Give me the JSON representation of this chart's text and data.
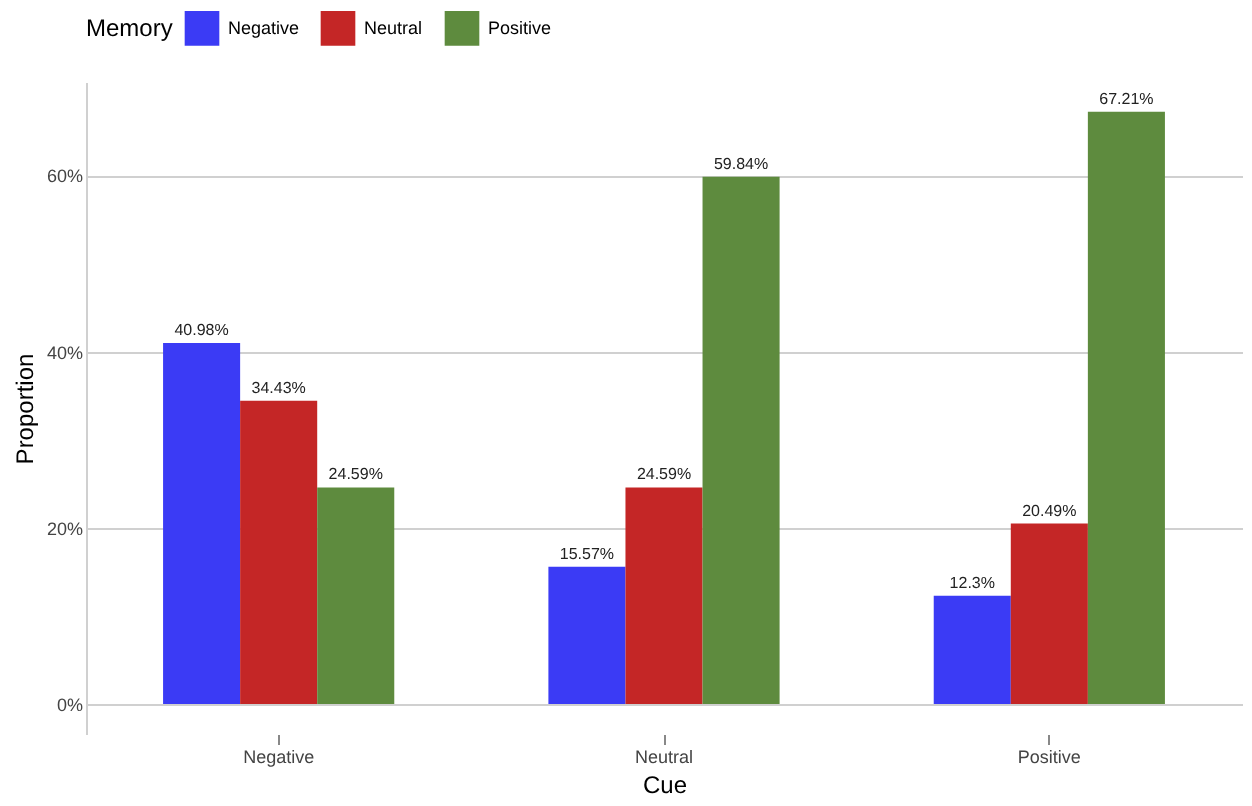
{
  "chart_data": {
    "type": "bar",
    "xlabel": "Cue",
    "ylabel": "Proportion",
    "legend_title": "Memory",
    "legend": "top",
    "grid": "y",
    "categories": [
      "Negative",
      "Neutral",
      "Positive"
    ],
    "series": [
      {
        "name": "Negative",
        "color": "#3b3bf5",
        "values": [
          40.98,
          15.57,
          12.3
        ],
        "value_labels": [
          "40.98%",
          "15.57%",
          "12.3%"
        ]
      },
      {
        "name": "Neutral",
        "color": "#c42626",
        "values": [
          34.43,
          24.59,
          20.49
        ],
        "value_labels": [
          "34.43%",
          "24.59%",
          "20.49%"
        ]
      },
      {
        "name": "Positive",
        "color": "#5e8b3e",
        "values": [
          24.59,
          59.84,
          67.21
        ],
        "value_labels": [
          "24.59%",
          "59.84%",
          "67.21%"
        ]
      }
    ],
    "ylim": [
      -3.4,
      70.6
    ],
    "yticks": [
      {
        "value": 0,
        "label": "0%"
      },
      {
        "value": 20,
        "label": "20%"
      },
      {
        "value": 40,
        "label": "40%"
      },
      {
        "value": 60,
        "label": "60%"
      }
    ]
  }
}
